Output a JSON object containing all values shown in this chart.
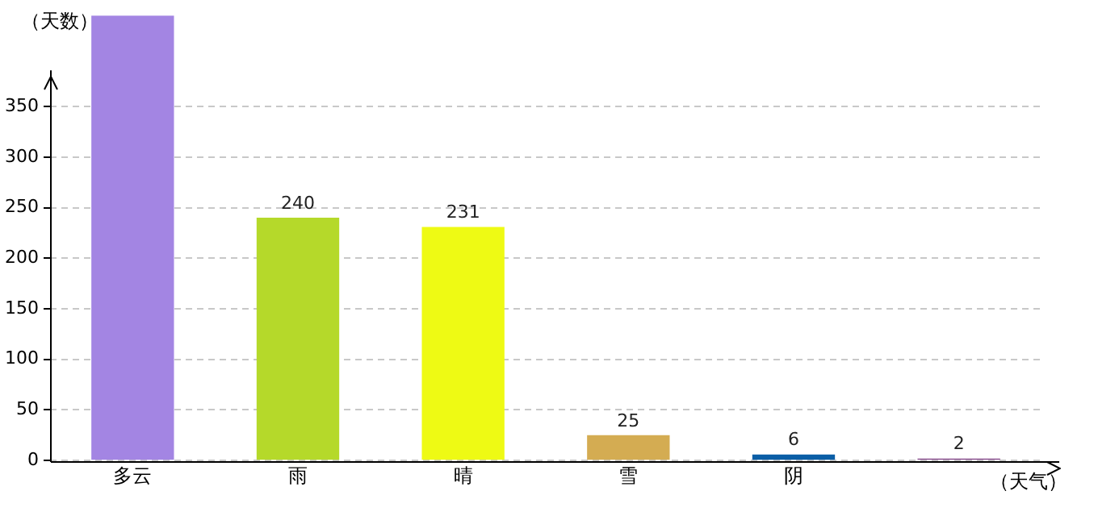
{
  "chart_data": {
    "type": "bar",
    "xlabel": "（天气）",
    "ylabel": "（天数）",
    "categories": [
      "多云",
      "雨",
      "晴",
      "雪",
      "阴",
      null
    ],
    "values": [
      440,
      240,
      231,
      25,
      6,
      2
    ],
    "colors": [
      "#a385e3",
      "#b5d92a",
      "#eefa14",
      "#d4ac52",
      "#0b5ea6",
      "#8a4f8f"
    ],
    "value_labels": [
      null,
      "240",
      "231",
      "25",
      "6",
      "2"
    ],
    "ylim": [
      0,
      440
    ],
    "yticks": [
      0,
      50,
      100,
      150,
      200,
      250,
      300,
      350
    ],
    "grid": "y",
    "legend": false
  }
}
